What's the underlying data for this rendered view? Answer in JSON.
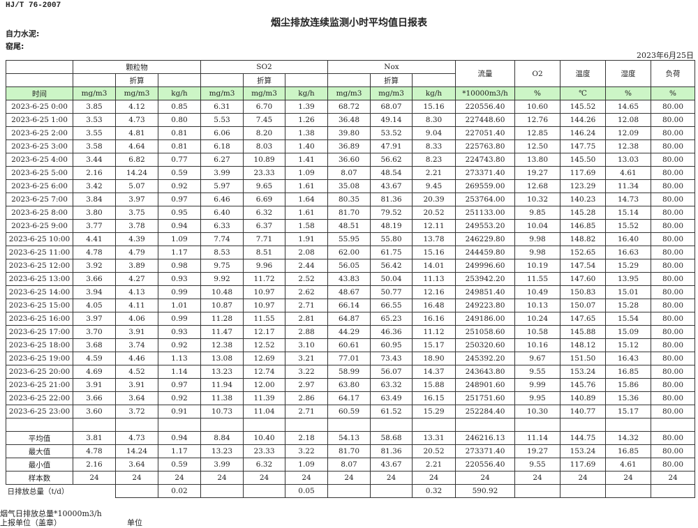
{
  "standard": "HJ/T  76-2007",
  "title": "烟尘排放连续监测小时平均值日报表",
  "org_line1": "自力水泥:",
  "org_line2": "窑尾:",
  "report_date": "2023年6月25日",
  "header": {
    "groups": [
      "颗粒物",
      "SO2",
      "Nox"
    ],
    "converted": "折算",
    "flow": "流量",
    "o2": "O2",
    "temp": "温度",
    "humidity": "湿度",
    "load": "负荷",
    "units": [
      "时间",
      "mg/m3",
      "mg/m3",
      "kg/h",
      "mg/m3",
      "mg/m3",
      "kg/h",
      "mg/m3",
      "mg/m3",
      "kg/h",
      "*10000m3/h",
      "%",
      "℃",
      "%",
      "%"
    ]
  },
  "rows": [
    [
      "2023-6-25 0:00",
      "3.85",
      "4.12",
      "0.85",
      "6.31",
      "6.70",
      "1.39",
      "68.72",
      "68.07",
      "15.16",
      "220556.40",
      "10.60",
      "145.52",
      "14.65",
      "80.00"
    ],
    [
      "2023-6-25 1:00",
      "3.53",
      "4.73",
      "0.80",
      "5.53",
      "7.45",
      "1.26",
      "36.48",
      "49.14",
      "8.30",
      "227448.60",
      "12.76",
      "144.26",
      "12.08",
      "80.00"
    ],
    [
      "2023-6-25 2:00",
      "3.55",
      "4.81",
      "0.81",
      "6.06",
      "8.20",
      "1.38",
      "39.80",
      "53.52",
      "9.04",
      "227051.40",
      "12.85",
      "146.24",
      "12.09",
      "80.00"
    ],
    [
      "2023-6-25 3:00",
      "3.58",
      "4.64",
      "0.81",
      "6.18",
      "8.03",
      "1.40",
      "36.89",
      "47.91",
      "8.33",
      "225763.80",
      "12.50",
      "147.75",
      "12.38",
      "80.00"
    ],
    [
      "2023-6-25 4:00",
      "3.44",
      "6.82",
      "0.77",
      "6.27",
      "10.89",
      "1.41",
      "36.60",
      "56.62",
      "8.23",
      "224743.80",
      "13.80",
      "145.50",
      "13.03",
      "80.00"
    ],
    [
      "2023-6-25 5:00",
      "2.16",
      "14.24",
      "0.59",
      "3.99",
      "23.33",
      "1.09",
      "8.07",
      "48.54",
      "2.21",
      "273371.40",
      "19.27",
      "117.69",
      "4.61",
      "80.00"
    ],
    [
      "2023-6-25 6:00",
      "3.42",
      "5.07",
      "0.92",
      "5.97",
      "9.65",
      "1.61",
      "35.08",
      "43.67",
      "9.45",
      "269559.00",
      "12.68",
      "123.29",
      "11.34",
      "80.00"
    ],
    [
      "2023-6-25 7:00",
      "3.84",
      "3.97",
      "0.97",
      "6.46",
      "6.69",
      "1.64",
      "80.35",
      "81.36",
      "20.39",
      "253764.00",
      "10.32",
      "140.23",
      "14.73",
      "80.00"
    ],
    [
      "2023-6-25 8:00",
      "3.80",
      "3.75",
      "0.95",
      "6.40",
      "6.32",
      "1.61",
      "81.70",
      "79.52",
      "20.52",
      "251133.00",
      "9.85",
      "145.28",
      "15.14",
      "80.00"
    ],
    [
      "2023-6-25 9:00",
      "3.77",
      "3.78",
      "0.94",
      "6.33",
      "6.37",
      "1.58",
      "48.51",
      "48.19",
      "12.11",
      "249553.20",
      "10.04",
      "146.85",
      "15.52",
      "80.00"
    ],
    [
      "2023-6-25 10:00",
      "4.41",
      "4.39",
      "1.09",
      "7.74",
      "7.71",
      "1.91",
      "55.95",
      "55.80",
      "13.78",
      "246229.80",
      "9.98",
      "148.82",
      "16.40",
      "80.00"
    ],
    [
      "2023-6-25 11:00",
      "4.78",
      "4.79",
      "1.17",
      "8.53",
      "8.51",
      "2.08",
      "62.00",
      "61.75",
      "15.16",
      "244459.80",
      "9.98",
      "152.65",
      "16.63",
      "80.00"
    ],
    [
      "2023-6-25 12:00",
      "3.92",
      "3.89",
      "0.98",
      "9.75",
      "9.96",
      "2.44",
      "56.05",
      "56.42",
      "14.01",
      "249996.60",
      "10.19",
      "147.54",
      "15.29",
      "80.00"
    ],
    [
      "2023-6-25 13:00",
      "3.66",
      "4.27",
      "0.93",
      "9.92",
      "11.72",
      "2.52",
      "43.83",
      "50.04",
      "11.13",
      "253942.20",
      "11.55",
      "147.60",
      "13.95",
      "80.00"
    ],
    [
      "2023-6-25 14:00",
      "3.94",
      "4.13",
      "0.99",
      "10.48",
      "10.97",
      "2.62",
      "48.67",
      "50.77",
      "12.16",
      "249851.40",
      "10.49",
      "150.83",
      "15.01",
      "80.00"
    ],
    [
      "2023-6-25 15:00",
      "4.05",
      "4.11",
      "1.01",
      "10.87",
      "10.97",
      "2.71",
      "66.14",
      "66.55",
      "16.48",
      "249223.80",
      "10.13",
      "150.07",
      "15.28",
      "80.00"
    ],
    [
      "2023-6-25 16:00",
      "3.97",
      "4.06",
      "0.99",
      "11.28",
      "11.55",
      "2.81",
      "64.87",
      "65.23",
      "16.16",
      "249186.00",
      "10.24",
      "147.65",
      "15.54",
      "80.00"
    ],
    [
      "2023-6-25 17:00",
      "3.70",
      "3.91",
      "0.93",
      "11.47",
      "12.17",
      "2.88",
      "44.29",
      "46.36",
      "11.12",
      "251058.60",
      "10.58",
      "145.88",
      "15.09",
      "80.00"
    ],
    [
      "2023-6-25 18:00",
      "3.68",
      "3.74",
      "0.92",
      "12.38",
      "12.52",
      "3.10",
      "60.61",
      "60.95",
      "15.17",
      "250320.60",
      "10.16",
      "148.12",
      "15.12",
      "80.00"
    ],
    [
      "2023-6-25 19:00",
      "4.59",
      "4.46",
      "1.13",
      "13.08",
      "12.69",
      "3.21",
      "77.01",
      "73.43",
      "18.90",
      "245392.20",
      "9.67",
      "151.50",
      "16.43",
      "80.00"
    ],
    [
      "2023-6-25 20:00",
      "4.69",
      "4.52",
      "1.14",
      "13.23",
      "12.74",
      "3.22",
      "58.99",
      "56.07",
      "14.37",
      "243643.80",
      "9.55",
      "153.24",
      "16.85",
      "80.00"
    ],
    [
      "2023-6-25 21:00",
      "3.91",
      "3.91",
      "0.97",
      "11.94",
      "12.00",
      "2.97",
      "63.80",
      "63.32",
      "15.88",
      "248901.60",
      "9.99",
      "145.76",
      "15.86",
      "80.00"
    ],
    [
      "2023-6-25 22:00",
      "3.66",
      "3.64",
      "0.92",
      "11.38",
      "11.39",
      "2.86",
      "64.17",
      "63.49",
      "16.15",
      "251751.60",
      "9.95",
      "140.89",
      "15.36",
      "80.00"
    ],
    [
      "2023-6-25 23:00",
      "3.60",
      "3.72",
      "0.91",
      "10.73",
      "11.04",
      "2.71",
      "60.59",
      "61.52",
      "15.29",
      "252284.40",
      "10.30",
      "140.77",
      "15.17",
      "80.00"
    ]
  ],
  "summary": [
    [
      "平均值",
      "3.81",
      "4.73",
      "0.94",
      "8.84",
      "10.40",
      "2.18",
      "54.13",
      "58.68",
      "13.31",
      "246216.13",
      "11.14",
      "144.75",
      "14.32",
      "80.00"
    ],
    [
      "最大值",
      "4.78",
      "14.24",
      "1.17",
      "13.23",
      "23.33",
      "3.22",
      "81.70",
      "81.36",
      "20.52",
      "273371.40",
      "19.27",
      "153.24",
      "16.85",
      "80.00"
    ],
    [
      "最小值",
      "2.16",
      "3.64",
      "0.59",
      "3.99",
      "6.32",
      "1.09",
      "8.07",
      "43.67",
      "2.21",
      "220556.40",
      "9.55",
      "117.69",
      "4.61",
      "80.00"
    ],
    [
      "样本数",
      "24",
      "24",
      "24",
      "24",
      "24",
      "24",
      "24",
      "24",
      "24",
      "24",
      "24",
      "24",
      "24",
      "24"
    ]
  ],
  "daily_total": {
    "label": "日排放总量（t/d）",
    "values": [
      "",
      "0.02",
      "",
      "",
      "0.05",
      "",
      "",
      "0.32",
      "590.92",
      "",
      "",
      "",
      ""
    ]
  },
  "footer": {
    "note": "烟气日排放总量*10000m3/h",
    "unit_label": "上报单位（盖章）",
    "unit": "单位"
  }
}
